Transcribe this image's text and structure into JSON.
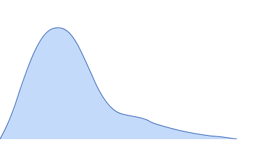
{
  "chart_data": {
    "type": "area",
    "x": [
      0,
      10,
      20,
      30,
      40,
      50,
      60,
      70,
      80,
      90,
      100,
      110,
      120,
      130,
      140,
      150,
      160,
      170,
      180,
      190,
      200,
      210,
      220,
      240,
      260,
      280,
      300,
      320,
      340
    ],
    "values": [
      0,
      20,
      45,
      75,
      103,
      127,
      145,
      156,
      160,
      159,
      152,
      138,
      118,
      96,
      74,
      57,
      45,
      38,
      35,
      33,
      31,
      28,
      23,
      17,
      12,
      8,
      5,
      3,
      0
    ],
    "color": "#c4dafa",
    "line_color": "#2c5fb3",
    "xlim": [
      0,
      400
    ],
    "ylim": [
      0,
      200
    ]
  }
}
